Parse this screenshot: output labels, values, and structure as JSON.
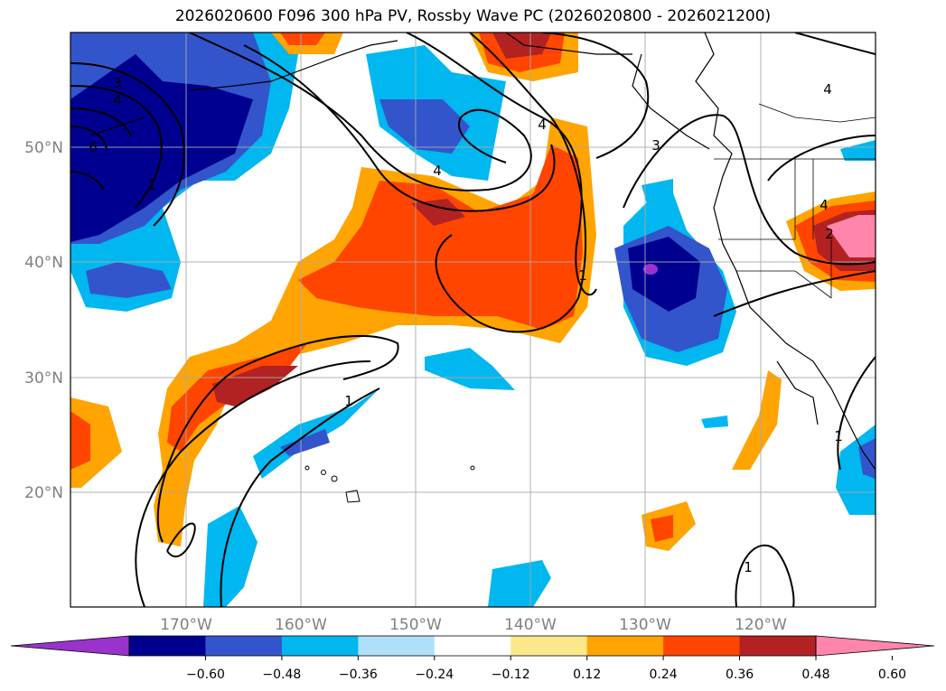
{
  "title": "2026020600 F096 300 hPa PV, Rossby Wave PC (2026020800 - 2026021200)",
  "map": {
    "lat_labels": [
      "50°N",
      "40°N",
      "30°N",
      "20°N"
    ],
    "lon_labels": [
      "170°W",
      "160°W",
      "150°W",
      "140°W",
      "130°W",
      "120°W"
    ],
    "contour_labels": [
      "3",
      "4",
      "6",
      "1",
      "4",
      "4",
      "3",
      "4",
      "1",
      "1",
      "2",
      "4",
      "1",
      "1"
    ],
    "land_color": "#000000",
    "grid_color": "#aaaaaa",
    "label_color": "#808080"
  },
  "colorbar": {
    "colors": [
      "#9933cc",
      "#000090",
      "#3355cc",
      "#00b7f0",
      "#aee0fa",
      "#ffffff",
      "#fce88c",
      "#ffa400",
      "#ff4500",
      "#b22222",
      "#ff85ab"
    ],
    "tick_labels": [
      "−0.60",
      "−0.48",
      "−0.36",
      "−0.24",
      "−0.12",
      "0.12",
      "0.24",
      "0.36",
      "0.48",
      "0.60"
    ]
  }
}
